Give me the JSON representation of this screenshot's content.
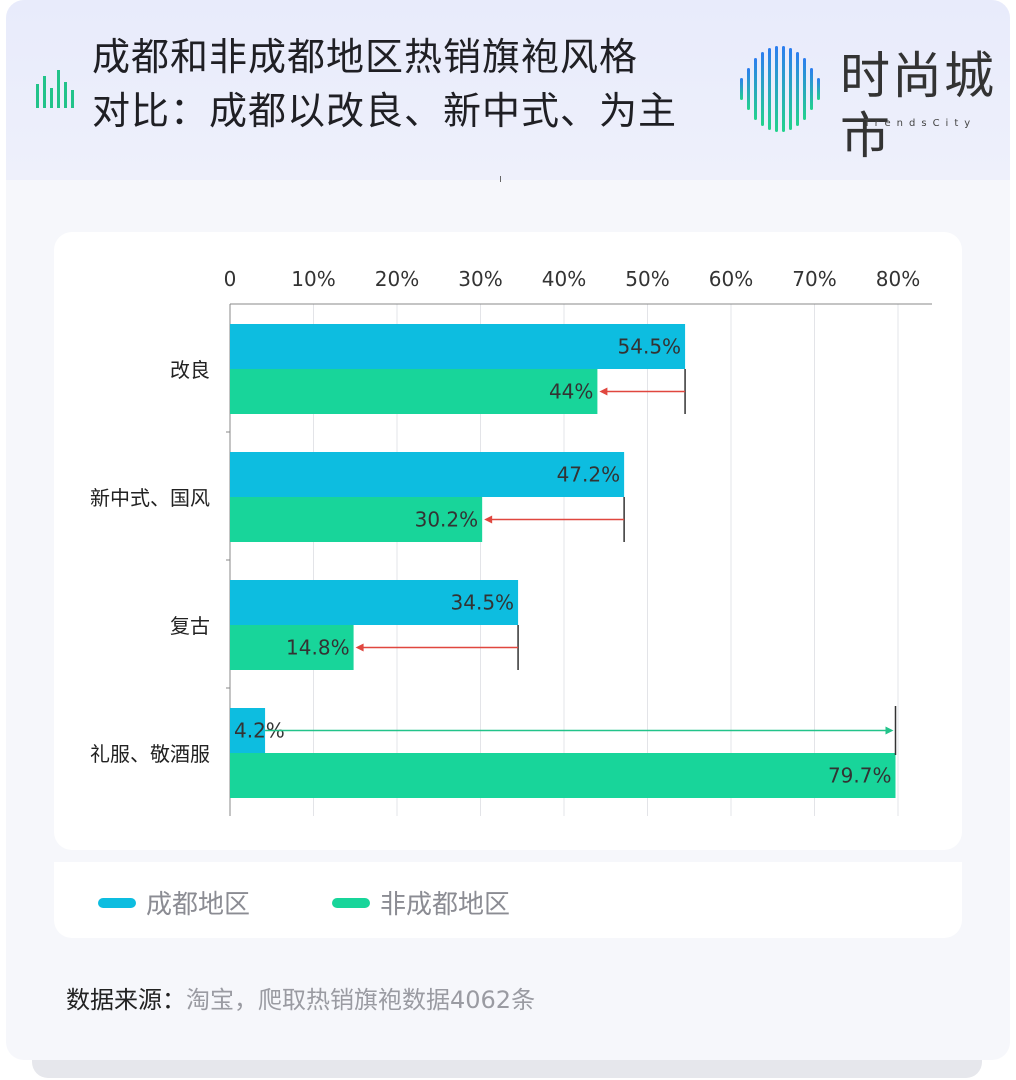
{
  "header": {
    "title_line1": "成都和非成都地区热销旗袍风格",
    "title_line2": "对比：成都以改良、新中式、为主",
    "logo_text": "时尚城市",
    "logo_sub": "TrendsCity"
  },
  "legend": {
    "items": [
      {
        "label": "成都地区",
        "color": "#0dbde0"
      },
      {
        "label": "非成都地区",
        "color": "#18d59a"
      }
    ]
  },
  "source": {
    "label": "数据来源：",
    "value": "淘宝，爬取热销旗袍数据4062条"
  },
  "chart_data": {
    "type": "bar",
    "orientation": "horizontal",
    "xlim": [
      0,
      80
    ],
    "x_ticks": [
      "0",
      "10%",
      "20%",
      "30%",
      "40%",
      "50%",
      "60%",
      "70%",
      "80%"
    ],
    "categories": [
      "改良",
      "新中式、国风",
      "复古",
      "礼服、敬酒服"
    ],
    "series": [
      {
        "name": "成都地区",
        "values": [
          54.5,
          47.2,
          34.5,
          4.2
        ],
        "labels": [
          "54.5%",
          "47.2%",
          "34.5%",
          "4.2%"
        ],
        "color": "#0dbde0"
      },
      {
        "name": "非成都地区",
        "values": [
          44,
          30.2,
          14.8,
          79.7
        ],
        "labels": [
          "44%",
          "30.2%",
          "14.8%",
          "79.7%"
        ],
        "color": "#18d59a"
      }
    ],
    "grid": true,
    "legend_position": "bottom-left",
    "annotations": "arrows from 成都地区 value to 非成都地区 value per category"
  }
}
